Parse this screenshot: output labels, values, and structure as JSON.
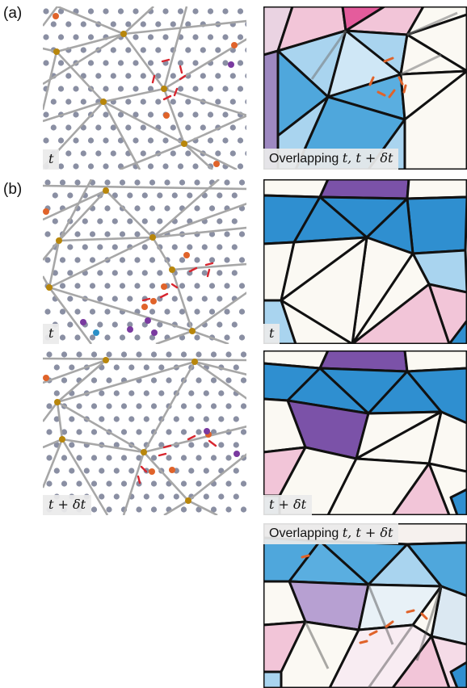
{
  "labels": {
    "a": "(a)",
    "b": "(b)"
  },
  "panels": {
    "a_left": {
      "caption": "t"
    },
    "a_right": {
      "caption_prefix": "Overlapping ",
      "caption_math": "t, t + δt"
    },
    "b1_left": {
      "caption": "t"
    },
    "b1_right": {
      "caption": "t"
    },
    "b2_left": {
      "caption": "t + δt"
    },
    "b2_right": {
      "caption": "t + δt"
    },
    "b3_right": {
      "caption_prefix": "Overlapping ",
      "caption_math": "t, t + δt"
    }
  },
  "colors": {
    "dot_gray": "#8a8fa3",
    "dot_orange": "#e0632a",
    "dot_purple": "#7a3aa0",
    "dot_cyan": "#2a8fc8",
    "line_gray": "#a7a7a7",
    "node_gold": "#b8860b",
    "arrow_red": "#d8262f",
    "blue_dark": "#2f8fd0",
    "blue_mid": "#5aaee0",
    "blue_light": "#a9d4ef",
    "pink": "#f2c5d8",
    "pink_dark": "#e45c9c",
    "purple": "#7b52a8",
    "purple_light": "#b7a0d2",
    "cream": "#fbf9f3",
    "dash_orange": "#e0632a"
  }
}
